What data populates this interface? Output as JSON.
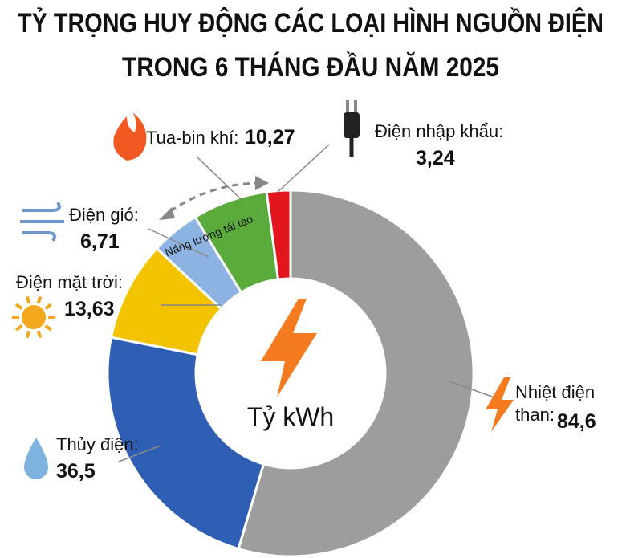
{
  "chart_data": {
    "type": "donut",
    "title": "TỶ TRỌNG HUY ĐỘNG CÁC LOẠI HÌNH NGUỒN ĐIỆN",
    "subtitle": "TRONG 6 THÁNG ĐẦU NĂM 2025",
    "center_label": "Tỷ kWh",
    "annotation": "Năng lượng tái tạo",
    "categories": [
      "Nhiệt điện than:",
      "Thủy điện:",
      "Điện mặt trời:",
      "Điện gió:",
      "Tua-bin khí:",
      "Điện nhập khẩu:"
    ],
    "values": [
      84.6,
      36.5,
      13.63,
      6.71,
      10.27,
      3.24
    ],
    "value_labels": [
      "84,6",
      "36,5",
      "13,63",
      "6,71",
      "10,27",
      "3,24"
    ],
    "colors": [
      "#9d9d9d",
      "#2e5fb4",
      "#f3c300",
      "#8db3e2",
      "#5aab3b",
      "#e3161e"
    ]
  }
}
